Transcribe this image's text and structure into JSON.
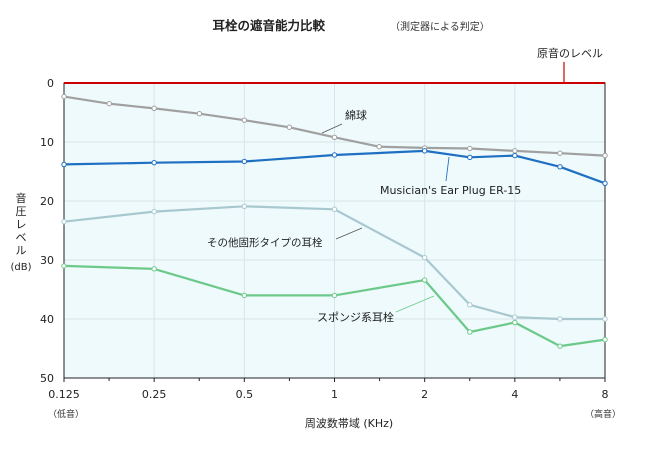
{
  "chart_data": {
    "type": "line",
    "title": "耳栓の遮音能力比較",
    "subtitle": "（測定器による判定）",
    "xlabel": "周波数帯域 (KHz)",
    "ylabel": "音圧レベル",
    "ylabel_unit": "(dB)",
    "x_tick_labels": [
      "0.125",
      "0.25",
      "0.5",
      "1",
      "2",
      "4",
      "8"
    ],
    "x_low_label": "（低音）",
    "x_high_label": "（高音）",
    "y_ticks": [
      0,
      10,
      20,
      30,
      40,
      50
    ],
    "ylim": [
      0,
      50
    ],
    "y_inverted": true,
    "x_scale": "log2",
    "xlim": [
      0.125,
      8
    ],
    "grid": true,
    "reference": {
      "name": "原音のレベル",
      "value": 0,
      "color": "#cc0000"
    },
    "series": [
      {
        "name": "綿球",
        "color": "#a0a0a0",
        "x": [
          0.125,
          0.177,
          0.25,
          0.354,
          0.5,
          0.707,
          1,
          1.41,
          2,
          2.83,
          4,
          5.66,
          8
        ],
        "y": [
          2.3,
          3.5,
          4.3,
          5.2,
          6.3,
          7.5,
          9.2,
          10.8,
          11.0,
          11.1,
          11.5,
          11.9,
          12.3
        ]
      },
      {
        "name": "Musician's Ear Plug ER-15",
        "color": "#1f6fc2",
        "x": [
          0.125,
          0.25,
          0.5,
          1,
          2,
          2.83,
          4,
          5.66,
          8
        ],
        "y": [
          13.8,
          13.5,
          13.3,
          12.2,
          11.5,
          12.6,
          12.3,
          14.2,
          17.0
        ]
      },
      {
        "name": "その他固形タイプの耳栓",
        "color": "#a8c8d0",
        "x": [
          0.125,
          0.25,
          0.5,
          1,
          2,
          2.83,
          4,
          5.66,
          8
        ],
        "y": [
          23.5,
          21.8,
          20.9,
          21.4,
          29.6,
          37.6,
          39.7,
          40.0,
          40.0
        ]
      },
      {
        "name": "スポンジ系耳栓",
        "color": "#6cc98a",
        "x": [
          0.125,
          0.25,
          0.5,
          1,
          2,
          2.83,
          4,
          5.66,
          8
        ],
        "y": [
          31.0,
          31.5,
          36.0,
          36.0,
          33.4,
          42.2,
          40.6,
          44.6,
          43.5
        ]
      }
    ]
  }
}
